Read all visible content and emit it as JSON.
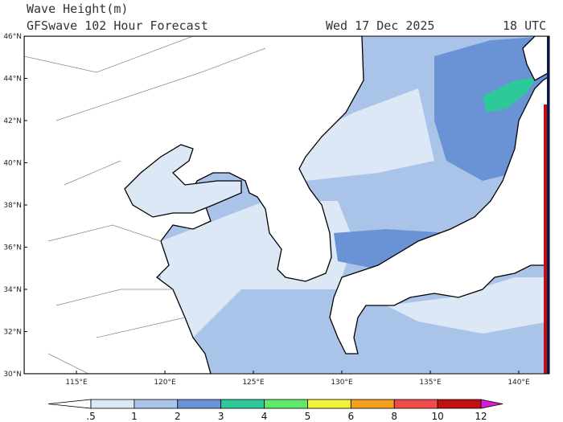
{
  "header": {
    "title": "Wave Height(m)",
    "subtitle": "GFSwave 102 Hour Forecast",
    "date": "Wed 17 Dec 2025",
    "time": "18 UTC"
  },
  "map": {
    "lat_labels": [
      "46°N",
      "44°N",
      "42°N",
      "40°N",
      "38°N",
      "36°N",
      "34°N",
      "32°N",
      "30°N"
    ],
    "lon_labels": [
      "115°E",
      "120°E",
      "125°E",
      "130°E",
      "135°E",
      "140°E"
    ]
  },
  "colorbar": {
    "ticks": [
      {
        "value": 0.5,
        "label": ".5"
      },
      1,
      2,
      3,
      4,
      5,
      6,
      8,
      10,
      12
    ],
    "colors": [
      "#ffffff",
      "#dce8f5",
      "#a9c4e8",
      "#6a93d6",
      "#2ec99a",
      "#5fe86a",
      "#f2f23a",
      "#f5a020",
      "#f04a4a",
      "#c01010",
      "#d020d0"
    ]
  }
}
